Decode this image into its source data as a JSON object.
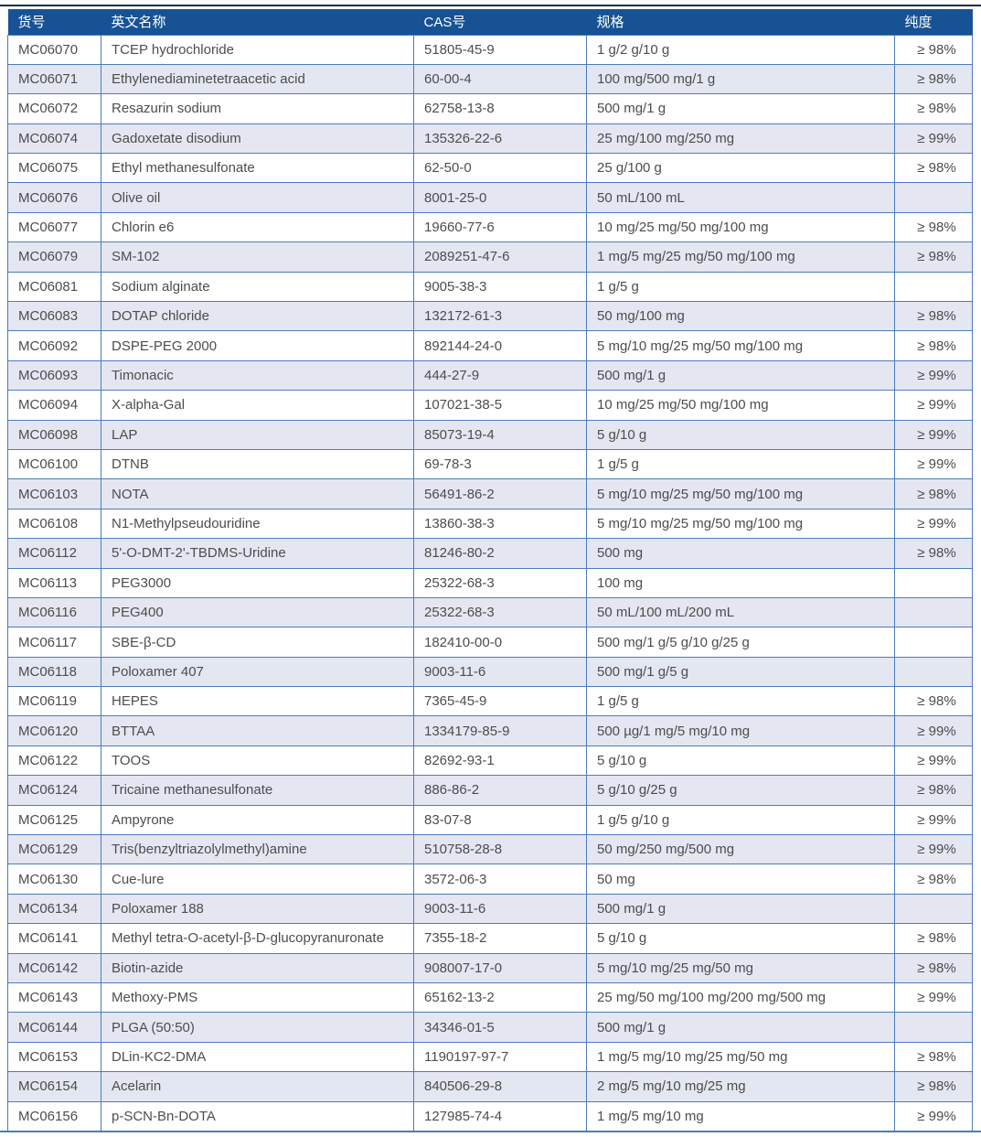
{
  "colors": {
    "header_bg": "#175394",
    "row_alt_bg": "#e4e6f1",
    "border": "#4d7cbc",
    "top_rule": "#16304e",
    "text": "#4d4d4d"
  },
  "table": {
    "columns": [
      {
        "key": "code",
        "label": "货号"
      },
      {
        "key": "name",
        "label": "英文名称"
      },
      {
        "key": "cas",
        "label": "CAS号"
      },
      {
        "key": "spec",
        "label": "规格"
      },
      {
        "key": "purity",
        "label": "纯度"
      }
    ],
    "rows": [
      {
        "code": "MC06070",
        "name": "TCEP hydrochloride",
        "cas": "51805-45-9",
        "spec": "1 g/2 g/10 g",
        "purity": "≥ 98%"
      },
      {
        "code": "MC06071",
        "name": "Ethylenediaminetetraacetic acid",
        "cas": "60-00-4",
        "spec": "100 mg/500 mg/1 g",
        "purity": "≥ 98%"
      },
      {
        "code": "MC06072",
        "name": "Resazurin sodium",
        "cas": "62758-13-8",
        "spec": "500 mg/1 g",
        "purity": "≥ 98%"
      },
      {
        "code": "MC06074",
        "name": "Gadoxetate disodium",
        "cas": "135326-22-6",
        "spec": "25 mg/100 mg/250 mg",
        "purity": "≥ 99%"
      },
      {
        "code": "MC06075",
        "name": "Ethyl methanesulfonate",
        "cas": "62-50-0",
        "spec": "25 g/100 g",
        "purity": "≥ 98%"
      },
      {
        "code": "MC06076",
        "name": "Olive oil",
        "cas": "8001-25-0",
        "spec": "50 mL/100 mL",
        "purity": ""
      },
      {
        "code": "MC06077",
        "name": "Chlorin e6",
        "cas": "19660-77-6",
        "spec": "10 mg/25 mg/50 mg/100 mg",
        "purity": "≥ 98%"
      },
      {
        "code": "MC06079",
        "name": "SM-102",
        "cas": "2089251-47-6",
        "spec": "1 mg/5 mg/25 mg/50 mg/100 mg",
        "purity": "≥ 98%"
      },
      {
        "code": "MC06081",
        "name": "Sodium alginate",
        "cas": "9005-38-3",
        "spec": "1 g/5 g",
        "purity": ""
      },
      {
        "code": "MC06083",
        "name": "DOTAP chloride",
        "cas": "132172-61-3",
        "spec": "50 mg/100 mg",
        "purity": "≥ 98%"
      },
      {
        "code": "MC06092",
        "name": "DSPE-PEG 2000",
        "cas": "892144-24-0",
        "spec": "5 mg/10 mg/25 mg/50 mg/100 mg",
        "purity": "≥ 98%"
      },
      {
        "code": "MC06093",
        "name": "Timonacic",
        "cas": "444-27-9",
        "spec": "500 mg/1 g",
        "purity": "≥ 99%"
      },
      {
        "code": "MC06094",
        "name": "X-alpha-Gal",
        "cas": "107021-38-5",
        "spec": "10 mg/25 mg/50 mg/100 mg",
        "purity": "≥ 99%"
      },
      {
        "code": "MC06098",
        "name": "LAP",
        "cas": "85073-19-4",
        "spec": "5 g/10 g",
        "purity": "≥ 99%"
      },
      {
        "code": "MC06100",
        "name": "DTNB",
        "cas": "69-78-3",
        "spec": "1 g/5 g",
        "purity": "≥ 99%"
      },
      {
        "code": "MC06103",
        "name": "NOTA",
        "cas": "56491-86-2",
        "spec": "5 mg/10 mg/25 mg/50 mg/100 mg",
        "purity": "≥ 98%"
      },
      {
        "code": "MC06108",
        "name": "N1-Methylpseudouridine",
        "cas": "13860-38-3",
        "spec": "5 mg/10 mg/25 mg/50 mg/100 mg",
        "purity": "≥ 99%"
      },
      {
        "code": "MC06112",
        "name": "5'-O-DMT-2'-TBDMS-Uridine",
        "cas": "81246-80-2",
        "spec": "500 mg",
        "purity": "≥ 98%"
      },
      {
        "code": "MC06113",
        "name": "PEG3000",
        "cas": "25322-68-3",
        "spec": "100 mg",
        "purity": ""
      },
      {
        "code": "MC06116",
        "name": "PEG400",
        "cas": "25322-68-3",
        "spec": "50 mL/100 mL/200 mL",
        "purity": ""
      },
      {
        "code": "MC06117",
        "name": "SBE-β-CD",
        "cas": "182410-00-0",
        "spec": "500 mg/1 g/5 g/10 g/25 g",
        "purity": ""
      },
      {
        "code": "MC06118",
        "name": "Poloxamer 407",
        "cas": "9003-11-6",
        "spec": "500 mg/1 g/5 g",
        "purity": ""
      },
      {
        "code": "MC06119",
        "name": "HEPES",
        "cas": "7365-45-9",
        "spec": "1 g/5 g",
        "purity": "≥ 98%"
      },
      {
        "code": "MC06120",
        "name": "BTTAA",
        "cas": "1334179-85-9",
        "spec": "500 µg/1 mg/5 mg/10 mg",
        "purity": "≥ 99%"
      },
      {
        "code": "MC06122",
        "name": "TOOS",
        "cas": "82692-93-1",
        "spec": "5 g/10 g",
        "purity": "≥ 99%"
      },
      {
        "code": "MC06124",
        "name": "Tricaine methanesulfonate",
        "cas": "886-86-2",
        "spec": "5 g/10 g/25 g",
        "purity": "≥ 98%"
      },
      {
        "code": "MC06125",
        "name": "Ampyrone",
        "cas": "83-07-8",
        "spec": "1 g/5 g/10 g",
        "purity": "≥ 99%"
      },
      {
        "code": "MC06129",
        "name": "Tris(benzyltriazolylmethyl)amine",
        "cas": "510758-28-8",
        "spec": "50 mg/250 mg/500 mg",
        "purity": "≥ 99%"
      },
      {
        "code": "MC06130",
        "name": "Cue-lure",
        "cas": "3572-06-3",
        "spec": "50 mg",
        "purity": "≥ 98%"
      },
      {
        "code": "MC06134",
        "name": "Poloxamer 188",
        "cas": "9003-11-6",
        "spec": "500 mg/1 g",
        "purity": ""
      },
      {
        "code": "MC06141",
        "name": "Methyl tetra-O-acetyl-β-D-glucopyranuronate",
        "cas": "7355-18-2",
        "spec": "5 g/10 g",
        "purity": "≥ 98%"
      },
      {
        "code": "MC06142",
        "name": "Biotin-azide",
        "cas": "908007-17-0",
        "spec": "5 mg/10 mg/25 mg/50 mg",
        "purity": "≥ 98%"
      },
      {
        "code": "MC06143",
        "name": "Methoxy-PMS",
        "cas": "65162-13-2",
        "spec": "25 mg/50 mg/100 mg/200 mg/500 mg",
        "purity": "≥ 99%"
      },
      {
        "code": "MC06144",
        "name": "PLGA (50:50)",
        "cas": "34346-01-5",
        "spec": "500 mg/1 g",
        "purity": ""
      },
      {
        "code": "MC06153",
        "name": "DLin-KC2-DMA",
        "cas": "1190197-97-7",
        "spec": "1 mg/5 mg/10 mg/25 mg/50 mg",
        "purity": "≥ 98%"
      },
      {
        "code": "MC06154",
        "name": "Acelarin",
        "cas": "840506-29-8",
        "spec": "2 mg/5 mg/10 mg/25 mg",
        "purity": "≥ 98%"
      },
      {
        "code": "MC06156",
        "name": "p-SCN-Bn-DOTA",
        "cas": "127985-74-4",
        "spec": "1 mg/5 mg/10 mg",
        "purity": "≥ 99%"
      }
    ]
  }
}
